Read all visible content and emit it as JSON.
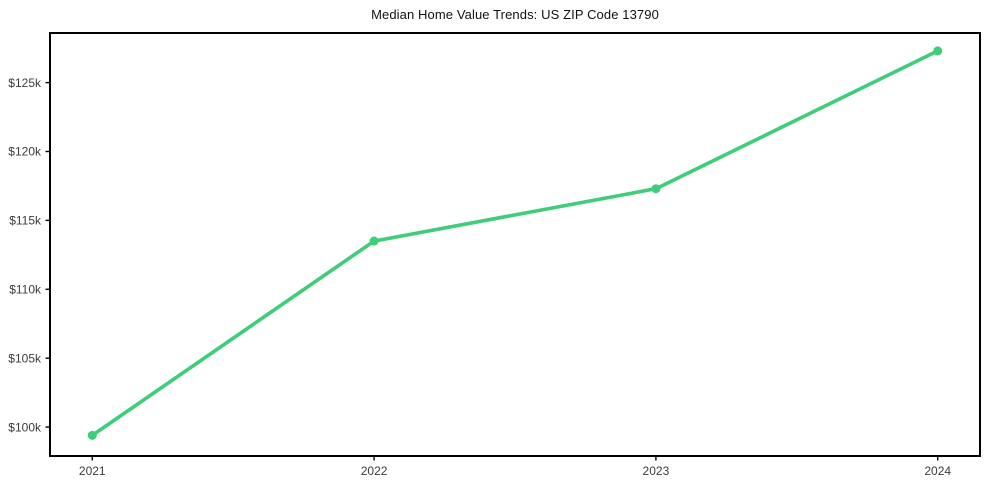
{
  "chart_data": {
    "type": "line",
    "title": "Median Home Value Trends: US ZIP Code 13790",
    "x": [
      2021,
      2022,
      2023,
      2024
    ],
    "x_tick_labels": [
      "2021",
      "2022",
      "2023",
      "2024"
    ],
    "series": [
      {
        "name": "Median Home Value",
        "values": [
          99400,
          113500,
          117300,
          127300
        ]
      }
    ],
    "y_ticks": [
      {
        "value": 100000,
        "label": "$100k"
      },
      {
        "value": 105000,
        "label": "$105k"
      },
      {
        "value": 110000,
        "label": "$110k"
      },
      {
        "value": 115000,
        "label": "$115k"
      },
      {
        "value": 120000,
        "label": "$120k"
      },
      {
        "value": 125000,
        "label": "$125k"
      }
    ],
    "xlim": [
      2020.85,
      2024.15
    ],
    "ylim": [
      97900,
      128600
    ],
    "xlabel": "",
    "ylabel": "",
    "grid": false,
    "legend": false,
    "line_width": 3.6,
    "marker": "circle",
    "marker_radius": 4.5,
    "line_color": "#3ecd78",
    "marker_color": "#3ecd78",
    "axis_color": "#000000",
    "tick_label_color": "#3c3c3c",
    "background_color": "#ffffff"
  }
}
